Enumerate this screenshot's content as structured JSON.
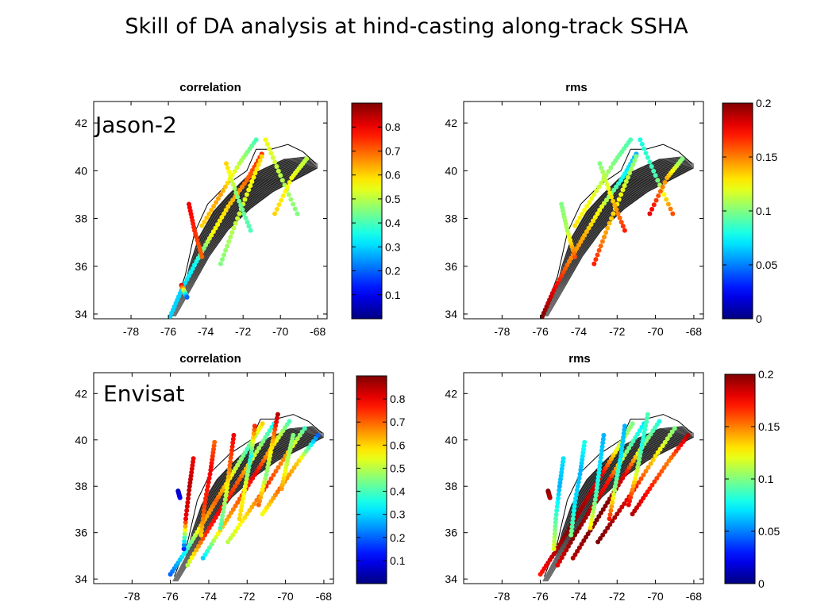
{
  "page": {
    "title": "Skill of DA analysis at hind-casting along-track SSHA"
  },
  "chart_data": [
    {
      "type": "scatter",
      "id": "jason-corr",
      "title": "correlation",
      "annotation": "Jason-2",
      "metric": "correlation",
      "xlim": [
        -80,
        -67.5
      ],
      "ylim": [
        33.8,
        42.9
      ],
      "xticks": [
        "-78",
        "-76",
        "-74",
        "-72",
        "-70",
        "-68"
      ],
      "yticks": [
        "34",
        "36",
        "38",
        "40",
        "42"
      ],
      "colorbar": {
        "range": [
          0,
          0.9
        ],
        "ticks": [
          "0.1",
          "0.2",
          "0.3",
          "0.4",
          "0.5",
          "0.6",
          "0.7",
          "0.8"
        ]
      },
      "tracks": [
        {
          "points": [
            [
              -75.9,
              33.9,
              0.3
            ],
            [
              -75.3,
              35.0,
              0.3
            ],
            [
              -74.5,
              36.2,
              0.35
            ],
            [
              -73.7,
              37.3,
              0.55
            ],
            [
              -72.8,
              38.5,
              0.6
            ],
            [
              -71.8,
              39.6,
              0.7
            ],
            [
              -71.0,
              40.7,
              0.75
            ]
          ]
        },
        {
          "points": [
            [
              -74.2,
              37.7,
              0.6
            ],
            [
              -73.2,
              39.0,
              0.65
            ],
            [
              -72.2,
              40.3,
              0.5
            ],
            [
              -71.3,
              41.3,
              0.4
            ]
          ]
        },
        {
          "points": [
            [
              -73.2,
              36.1,
              0.45
            ],
            [
              -72.5,
              37.6,
              0.5
            ],
            [
              -71.7,
              39.2,
              0.55
            ],
            [
              -71.0,
              40.6,
              0.6
            ]
          ]
        },
        {
          "points": [
            [
              -70.8,
              41.3,
              0.55
            ],
            [
              -70.0,
              39.8,
              0.5
            ],
            [
              -69.1,
              38.2,
              0.45
            ]
          ]
        },
        {
          "points": [
            [
              -74.2,
              36.4,
              0.7
            ],
            [
              -74.6,
              37.5,
              0.75
            ],
            [
              -74.9,
              38.6,
              0.8
            ]
          ]
        },
        {
          "points": [
            [
              -71.6,
              37.5,
              0.4
            ],
            [
              -72.3,
              38.9,
              0.45
            ],
            [
              -72.9,
              40.3,
              0.6
            ]
          ]
        },
        {
          "points": [
            [
              -70.3,
              38.2,
              0.6
            ],
            [
              -69.4,
              39.7,
              0.55
            ],
            [
              -68.6,
              40.5,
              0.5
            ]
          ]
        },
        {
          "points": [
            [
              -75.3,
              35.2,
              0.8
            ],
            [
              -75.0,
              34.7,
              0.2
            ]
          ]
        }
      ]
    },
    {
      "type": "scatter",
      "id": "jason-rms",
      "title": "rms",
      "annotation": "",
      "metric": "rms",
      "xlim": [
        -80,
        -67.5
      ],
      "ylim": [
        33.8,
        42.9
      ],
      "xticks": [
        "-78",
        "-76",
        "-74",
        "-72",
        "-70",
        "-68"
      ],
      "yticks": [
        "34",
        "36",
        "38",
        "40",
        "42"
      ],
      "colorbar": {
        "range": [
          0,
          0.2
        ],
        "ticks": [
          "0",
          "0.05",
          "0.1",
          "0.15",
          "0.2"
        ]
      },
      "tracks": [
        {
          "points": [
            [
              -75.9,
              33.9,
              0.2
            ],
            [
              -75.3,
              35.0,
              0.18
            ],
            [
              -74.5,
              36.2,
              0.15
            ],
            [
              -73.7,
              37.3,
              0.14
            ],
            [
              -72.8,
              38.5,
              0.12
            ],
            [
              -71.8,
              39.6,
              0.08
            ],
            [
              -71.0,
              40.7,
              0.06
            ]
          ]
        },
        {
          "points": [
            [
              -74.2,
              37.7,
              0.13
            ],
            [
              -73.2,
              39.0,
              0.12
            ],
            [
              -72.2,
              40.3,
              0.1
            ],
            [
              -71.3,
              41.3,
              0.09
            ]
          ]
        },
        {
          "points": [
            [
              -73.2,
              36.1,
              0.17
            ],
            [
              -72.5,
              37.6,
              0.14
            ],
            [
              -71.7,
              39.2,
              0.12
            ],
            [
              -71.0,
              40.6,
              0.1
            ]
          ]
        },
        {
          "points": [
            [
              -70.8,
              41.3,
              0.08
            ],
            [
              -70.0,
              39.8,
              0.09
            ],
            [
              -69.1,
              38.2,
              0.16
            ]
          ]
        },
        {
          "points": [
            [
              -74.2,
              36.4,
              0.16
            ],
            [
              -74.6,
              37.5,
              0.11
            ],
            [
              -74.9,
              38.6,
              0.1
            ]
          ]
        },
        {
          "points": [
            [
              -71.6,
              37.5,
              0.17
            ],
            [
              -72.3,
              38.9,
              0.13
            ],
            [
              -72.9,
              40.3,
              0.1
            ]
          ]
        },
        {
          "points": [
            [
              -70.3,
              38.2,
              0.18
            ],
            [
              -69.4,
              39.7,
              0.14
            ],
            [
              -68.6,
              40.5,
              0.1
            ]
          ]
        }
      ]
    },
    {
      "type": "scatter",
      "id": "envisat-corr",
      "title": "correlation",
      "annotation": "Envisat",
      "metric": "correlation",
      "xlim": [
        -80,
        -67.5
      ],
      "ylim": [
        33.8,
        42.9
      ],
      "xticks": [
        "-78",
        "-76",
        "-74",
        "-72",
        "-70",
        "-68"
      ],
      "yticks": [
        "34",
        "36",
        "38",
        "40",
        "42"
      ],
      "colorbar": {
        "range": [
          0,
          0.9
        ],
        "ticks": [
          "0.1",
          "0.2",
          "0.3",
          "0.4",
          "0.5",
          "0.6",
          "0.7",
          "0.8"
        ]
      },
      "tracks": [
        {
          "points": [
            [
              -76.0,
              34.2,
              0.2
            ],
            [
              -75.2,
              35.2,
              0.35
            ],
            [
              -74.4,
              36.3,
              0.6
            ],
            [
              -73.6,
              37.4,
              0.7
            ],
            [
              -72.8,
              38.5,
              0.55
            ],
            [
              -72.0,
              39.6,
              0.4
            ],
            [
              -71.2,
              40.7,
              0.6
            ]
          ]
        },
        {
          "points": [
            [
              -75.1,
              34.6,
              0.5
            ],
            [
              -74.2,
              35.9,
              0.75
            ],
            [
              -73.3,
              37.1,
              0.8
            ],
            [
              -72.4,
              38.3,
              0.7
            ],
            [
              -71.5,
              39.5,
              0.5
            ],
            [
              -70.6,
              40.7,
              0.35
            ]
          ]
        },
        {
          "points": [
            [
              -74.3,
              34.9,
              0.3
            ],
            [
              -73.4,
              36.1,
              0.6
            ],
            [
              -72.5,
              37.3,
              0.7
            ],
            [
              -71.6,
              38.5,
              0.8
            ],
            [
              -70.7,
              39.7,
              0.6
            ],
            [
              -69.8,
              40.8,
              0.4
            ]
          ]
        },
        {
          "points": [
            [
              -73.0,
              35.6,
              0.5
            ],
            [
              -72.0,
              36.8,
              0.6
            ],
            [
              -71.0,
              38.0,
              0.75
            ],
            [
              -70.0,
              39.3,
              0.65
            ],
            [
              -69.0,
              40.5,
              0.4
            ]
          ]
        },
        {
          "points": [
            [
              -71.2,
              36.8,
              0.55
            ],
            [
              -70.3,
              37.9,
              0.7
            ],
            [
              -69.3,
              39.1,
              0.6
            ],
            [
              -68.3,
              40.2,
              0.2
            ]
          ]
        },
        {
          "points": [
            [
              -75.3,
              35.3,
              0.15
            ],
            [
              -75.2,
              36.6,
              0.8
            ],
            [
              -75.0,
              38.0,
              0.85
            ],
            [
              -74.8,
              39.2,
              0.8
            ]
          ]
        },
        {
          "points": [
            [
              -74.4,
              35.9,
              0.6
            ],
            [
              -74.2,
              37.3,
              0.75
            ],
            [
              -73.9,
              38.7,
              0.8
            ],
            [
              -73.7,
              39.9,
              0.7
            ]
          ]
        },
        {
          "points": [
            [
              -73.4,
              36.2,
              0.4
            ],
            [
              -73.1,
              37.6,
              0.5
            ],
            [
              -72.9,
              38.9,
              0.7
            ],
            [
              -72.7,
              40.2,
              0.8
            ]
          ]
        },
        {
          "points": [
            [
              -72.4,
              36.6,
              0.6
            ],
            [
              -72.1,
              38.0,
              0.55
            ],
            [
              -71.8,
              39.3,
              0.35
            ],
            [
              -71.6,
              40.6,
              0.75
            ]
          ]
        },
        {
          "points": [
            [
              -71.4,
              37.2,
              0.7
            ],
            [
              -71.0,
              38.5,
              0.45
            ],
            [
              -70.7,
              39.8,
              0.6
            ],
            [
              -70.4,
              41.1,
              0.85
            ]
          ]
        },
        {
          "points": [
            [
              -70.2,
              37.9,
              0.65
            ],
            [
              -69.9,
              39.1,
              0.5
            ],
            [
              -69.6,
              40.2,
              0.45
            ]
          ]
        },
        {
          "points": [
            [
              -75.6,
              37.8,
              0.05
            ],
            [
              -75.5,
              37.5,
              0.1
            ]
          ]
        }
      ]
    },
    {
      "type": "scatter",
      "id": "envisat-rms",
      "title": "rms",
      "annotation": "",
      "metric": "rms",
      "xlim": [
        -80,
        -67.5
      ],
      "ylim": [
        33.8,
        42.9
      ],
      "xticks": [
        "-78",
        "-76",
        "-74",
        "-72",
        "-70",
        "-68"
      ],
      "yticks": [
        "34",
        "36",
        "38",
        "40",
        "42"
      ],
      "colorbar": {
        "range": [
          0,
          0.2
        ],
        "ticks": [
          "0",
          "0.05",
          "0.1",
          "0.15",
          "0.2"
        ]
      },
      "tracks": [
        {
          "points": [
            [
              -76.0,
              34.2,
              0.17
            ],
            [
              -75.2,
              35.2,
              0.19
            ],
            [
              -74.4,
              36.3,
              0.2
            ],
            [
              -73.6,
              37.4,
              0.19
            ],
            [
              -72.8,
              38.5,
              0.18
            ],
            [
              -72.0,
              39.6,
              0.12
            ],
            [
              -71.2,
              40.7,
              0.1
            ]
          ]
        },
        {
          "points": [
            [
              -75.1,
              34.6,
              0.18
            ],
            [
              -74.2,
              35.9,
              0.2
            ],
            [
              -73.3,
              37.1,
              0.19
            ],
            [
              -72.4,
              38.3,
              0.17
            ],
            [
              -71.5,
              39.5,
              0.1
            ],
            [
              -70.6,
              40.7,
              0.07
            ]
          ]
        },
        {
          "points": [
            [
              -74.3,
              34.9,
              0.19
            ],
            [
              -73.4,
              36.1,
              0.2
            ],
            [
              -72.5,
              37.3,
              0.2
            ],
            [
              -71.6,
              38.5,
              0.18
            ],
            [
              -70.7,
              39.7,
              0.11
            ],
            [
              -69.8,
              40.8,
              0.08
            ]
          ]
        },
        {
          "points": [
            [
              -73.0,
              35.6,
              0.2
            ],
            [
              -72.0,
              36.8,
              0.19
            ],
            [
              -71.0,
              38.0,
              0.17
            ],
            [
              -70.0,
              39.3,
              0.13
            ],
            [
              -69.0,
              40.5,
              0.1
            ]
          ]
        },
        {
          "points": [
            [
              -71.2,
              36.8,
              0.19
            ],
            [
              -70.3,
              37.9,
              0.17
            ],
            [
              -69.3,
              39.1,
              0.15
            ],
            [
              -68.3,
              40.2,
              0.19
            ]
          ]
        },
        {
          "points": [
            [
              -75.3,
              35.3,
              0.12
            ],
            [
              -75.2,
              36.6,
              0.09
            ],
            [
              -75.0,
              38.0,
              0.06
            ],
            [
              -74.8,
              39.2,
              0.07
            ]
          ]
        },
        {
          "points": [
            [
              -74.4,
              35.9,
              0.1
            ],
            [
              -74.2,
              37.3,
              0.07
            ],
            [
              -73.9,
              38.7,
              0.06
            ],
            [
              -73.7,
              39.9,
              0.08
            ]
          ]
        },
        {
          "points": [
            [
              -73.4,
              36.2,
              0.13
            ],
            [
              -73.1,
              37.6,
              0.09
            ],
            [
              -72.9,
              38.9,
              0.07
            ],
            [
              -72.7,
              40.2,
              0.06
            ]
          ]
        },
        {
          "points": [
            [
              -72.4,
              36.6,
              0.17
            ],
            [
              -72.1,
              38.0,
              0.1
            ],
            [
              -71.8,
              39.3,
              0.07
            ],
            [
              -71.6,
              40.6,
              0.06
            ]
          ]
        },
        {
          "points": [
            [
              -71.4,
              37.2,
              0.18
            ],
            [
              -71.0,
              38.5,
              0.12
            ],
            [
              -70.7,
              39.8,
              0.08
            ],
            [
              -70.4,
              41.1,
              0.09
            ]
          ]
        },
        {
          "points": [
            [
              -75.6,
              37.8,
              0.2
            ],
            [
              -75.5,
              37.5,
              0.19
            ]
          ]
        }
      ]
    }
  ]
}
